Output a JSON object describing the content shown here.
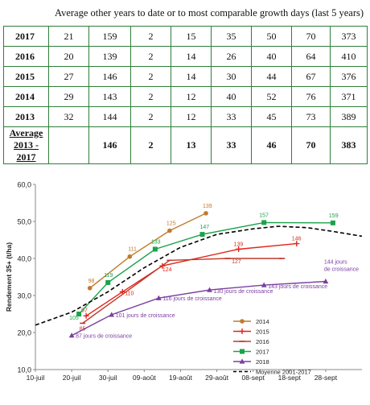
{
  "heading": "Average other years to date or to most comparable growth days (last 5 years)",
  "table": {
    "rows": [
      {
        "year": "2017",
        "cells": [
          "21",
          "159",
          "2",
          "15",
          "35",
          "50",
          "70",
          "373"
        ]
      },
      {
        "year": "2016",
        "cells": [
          "20",
          "139",
          "2",
          "14",
          "26",
          "40",
          "64",
          "410"
        ]
      },
      {
        "year": "2015",
        "cells": [
          "27",
          "146",
          "2",
          "14",
          "30",
          "44",
          "67",
          "376"
        ]
      },
      {
        "year": "2014",
        "cells": [
          "29",
          "143",
          "2",
          "12",
          "40",
          "52",
          "76",
          "371"
        ]
      },
      {
        "year": "2013",
        "cells": [
          "32",
          "144",
          "2",
          "12",
          "33",
          "45",
          "73",
          "389"
        ]
      }
    ],
    "average": {
      "label_line1": "Average 2013 -",
      "label_line2": "2017",
      "cells": [
        "",
        "146",
        "2",
        "13",
        "33",
        "46",
        "70",
        "383"
      ]
    }
  },
  "chart_data": {
    "type": "line",
    "ylabel": "Rendement 35+ (t/ha)",
    "ylim": [
      10,
      60
    ],
    "yticks": [
      "10,0",
      "20,0",
      "30,0",
      "40,0",
      "50,0",
      "60,0"
    ],
    "x_domain_days": [
      0,
      90
    ],
    "xticks": [
      {
        "day": 0,
        "label": "10-juil"
      },
      {
        "day": 10,
        "label": "20-juil"
      },
      {
        "day": 20,
        "label": "30-juil"
      },
      {
        "day": 30,
        "label": "09-août"
      },
      {
        "day": 40,
        "label": "19-août"
      },
      {
        "day": 50,
        "label": "29-août"
      },
      {
        "day": 60,
        "label": "08-sept"
      },
      {
        "day": 70,
        "label": "18-sept"
      },
      {
        "day": 80,
        "label": "28-sept"
      }
    ],
    "series": [
      {
        "name": "2014",
        "color": "#c07a2b",
        "marker": "circle",
        "points": [
          {
            "x": 15,
            "y": 32.0,
            "label": "98"
          },
          {
            "x": 26,
            "y": 40.5,
            "label": "111"
          },
          {
            "x": 37,
            "y": 47.5,
            "label": "125"
          },
          {
            "x": 47,
            "y": 52.2,
            "label": "139"
          }
        ]
      },
      {
        "name": "2015",
        "color": "#e0261b",
        "marker": "plus",
        "points": [
          {
            "x": 14,
            "y": 24.5,
            "label": "97"
          },
          {
            "x": 24,
            "y": 31.0,
            "label": "110"
          },
          {
            "x": 35,
            "y": 38.0,
            "label": "124"
          },
          {
            "x": 56,
            "y": 42.5,
            "label": "139"
          },
          {
            "x": 72,
            "y": 44.0,
            "label": "146"
          }
        ]
      },
      {
        "name": "2016",
        "color": "#c0392b",
        "marker": "dash",
        "points": [
          {
            "x": 13,
            "y": 22.5,
            "label": "85"
          },
          {
            "x": 37,
            "y": 39.5,
            "label": ""
          },
          {
            "x": 53,
            "y": 40.0,
            "label": "127"
          },
          {
            "x": 68,
            "y": 40.0,
            "label": ""
          }
        ]
      },
      {
        "name": "2017",
        "color": "#1aa34a",
        "marker": "square",
        "points": [
          {
            "x": 12,
            "y": 25.0,
            "label": "105"
          },
          {
            "x": 20,
            "y": 33.5,
            "label": "119"
          },
          {
            "x": 33,
            "y": 42.5,
            "label": "133"
          },
          {
            "x": 46,
            "y": 46.5,
            "label": "147"
          },
          {
            "x": 63,
            "y": 49.7,
            "label": "157"
          },
          {
            "x": 82,
            "y": 49.6,
            "label": "159"
          }
        ]
      },
      {
        "name": "2018",
        "color": "#7b3fa0",
        "marker": "triangle",
        "points": [
          {
            "x": 10,
            "y": 19.2,
            "label": "87 jours de croissance"
          },
          {
            "x": 21,
            "y": 24.8,
            "label": "101 jours de croissance"
          },
          {
            "x": 34,
            "y": 29.3,
            "label": "116 jours de croissance"
          },
          {
            "x": 48,
            "y": 31.5,
            "label": "130 jours de croissance"
          },
          {
            "x": 63,
            "y": 32.8,
            "label": "143 jours de croissance"
          },
          {
            "x": 80,
            "y": 33.8,
            "label": "144 jours de croissance"
          }
        ]
      },
      {
        "name": "Moyenne 2001-2017",
        "color": "#000000",
        "marker": "none",
        "dashed": true,
        "points": [
          {
            "x": 0,
            "y": 22.0
          },
          {
            "x": 10,
            "y": 25.5
          },
          {
            "x": 20,
            "y": 31.0
          },
          {
            "x": 30,
            "y": 37.5
          },
          {
            "x": 40,
            "y": 43.0
          },
          {
            "x": 50,
            "y": 46.5
          },
          {
            "x": 60,
            "y": 48.0
          },
          {
            "x": 67,
            "y": 48.7
          },
          {
            "x": 75,
            "y": 48.3
          },
          {
            "x": 82,
            "y": 47.3
          },
          {
            "x": 90,
            "y": 46.0
          }
        ]
      }
    ]
  }
}
